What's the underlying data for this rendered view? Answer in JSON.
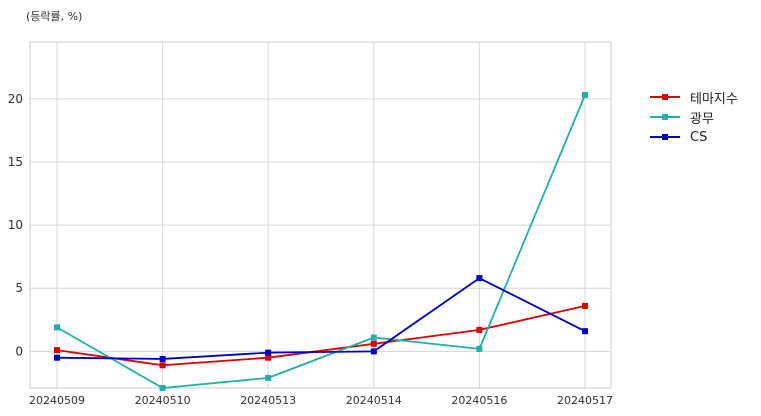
{
  "chart_data": {
    "type": "line",
    "unit_label": "(등락률, %)",
    "x": [
      "20240509",
      "20240510",
      "20240513",
      "20240514",
      "20240516",
      "20240517"
    ],
    "ylim": [
      -2.9,
      24.5
    ],
    "yticks": [
      0,
      5,
      10,
      15,
      20
    ],
    "grid": true,
    "legend_position": "right",
    "series": [
      {
        "name": "테마지수",
        "color": "#e00000",
        "values": [
          0.1,
          -1.1,
          -0.5,
          0.6,
          1.7,
          3.6
        ]
      },
      {
        "name": "광무",
        "color": "#20b2aa",
        "values": [
          1.9,
          -2.9,
          -2.1,
          1.1,
          0.2,
          20.3
        ]
      },
      {
        "name": "CS",
        "color": "#0000cc",
        "values": [
          -0.5,
          -0.6,
          -0.1,
          0.0,
          5.8,
          1.6
        ]
      }
    ]
  }
}
